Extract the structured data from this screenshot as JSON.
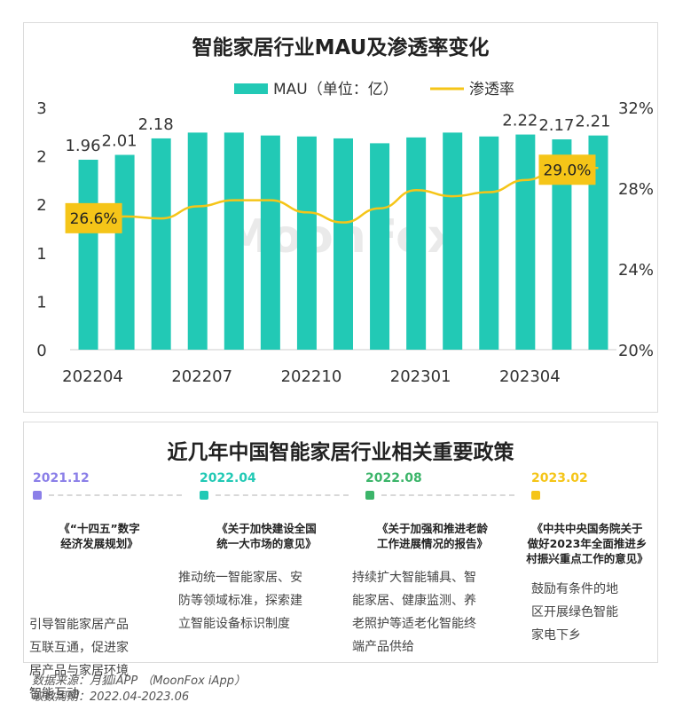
{
  "chart_title": "智能家居行业MAU及渗透率变化",
  "chart_data": {
    "type": "bar+line",
    "title": "智能家居行业MAU及渗透率变化",
    "legend": [
      "MAU（单位：亿）",
      "渗透率"
    ],
    "legend_position": "top",
    "watermark": "MoonFox",
    "categories": [
      "202204",
      "202205",
      "202206",
      "202207",
      "202208",
      "202209",
      "202210",
      "202211",
      "202212",
      "202301",
      "202302",
      "202303",
      "202304",
      "202305",
      "202306"
    ],
    "x_tick_labels": [
      "202204",
      "202207",
      "202210",
      "202301",
      "202304"
    ],
    "series": [
      {
        "name": "MAU（单位：亿）",
        "axis": "left",
        "type": "bar",
        "color": "#22c9b5",
        "values": [
          1.96,
          2.01,
          2.18,
          2.24,
          2.24,
          2.21,
          2.2,
          2.18,
          2.13,
          2.19,
          2.24,
          2.2,
          2.22,
          2.17,
          2.21
        ]
      },
      {
        "name": "渗透率",
        "axis": "right",
        "type": "line",
        "color": "#f5c518",
        "values": [
          26.0,
          26.6,
          26.5,
          27.1,
          27.4,
          27.4,
          26.8,
          26.3,
          27.0,
          27.9,
          27.6,
          27.8,
          28.4,
          29.0,
          29.0
        ]
      }
    ],
    "left_axis": {
      "ticks": [
        "0",
        "1",
        "1",
        "2",
        "2",
        "3"
      ],
      "ylim": [
        0,
        2.5
      ]
    },
    "right_axis": {
      "ticks": [
        "20%",
        "24%",
        "28%",
        "32%"
      ],
      "ylim": [
        20,
        32
      ]
    },
    "bar_data_labels": [
      {
        "index": 0,
        "text": "1.96"
      },
      {
        "index": 1,
        "text": "2.01"
      },
      {
        "index": 2,
        "text": "2.18"
      },
      {
        "index": 12,
        "text": "2.22"
      },
      {
        "index": 13,
        "text": "2.17"
      },
      {
        "index": 14,
        "text": "2.21"
      }
    ],
    "line_data_labels": [
      {
        "index": 1,
        "text": "26.6%"
      },
      {
        "index": 14,
        "text": "29.0%"
      }
    ]
  },
  "policy_title": "近几年中国智能家居行业相关重要政策",
  "policies": [
    {
      "date": "2021.12",
      "color": "#8b7fe8",
      "name_lines": [
        "《“十四五”数字",
        "经济发展规划》"
      ],
      "desc_lines": [
        "引导智能家居产品",
        "互联互通，促进家",
        "居产品与家居环境",
        "智能互动"
      ]
    },
    {
      "date": "2022.04",
      "color": "#22c9b5",
      "name_lines": [
        "《关于加快建设全国",
        "统一大市场的意见》"
      ],
      "desc_lines": [
        "推动统一智能家居、安",
        "防等领域标准，探索建",
        "立智能设备标识制度"
      ]
    },
    {
      "date": "2022.08",
      "color": "#3cb56a",
      "name_lines": [
        "《关于加强和推进老龄",
        "工作进展情况的报告》"
      ],
      "desc_lines": [
        "持续扩大智能辅具、智",
        "能家居、健康监测、养",
        "老照护等适老化智能终",
        "端产品供给"
      ]
    },
    {
      "date": "2023.02",
      "color": "#f5c518",
      "name_lines": [
        "《中共中央国务院关于",
        "做好2023年全面推进乡",
        "村振兴重点工作的意见》"
      ],
      "desc_lines": [
        "鼓励有条件的地",
        "区开展绿色智能",
        "家电下乡"
      ]
    }
  ],
  "footnotes": [
    "数据来源：月狐iAPP （MoonFox iApp）",
    "取数周期：2022.04-2023.06"
  ]
}
